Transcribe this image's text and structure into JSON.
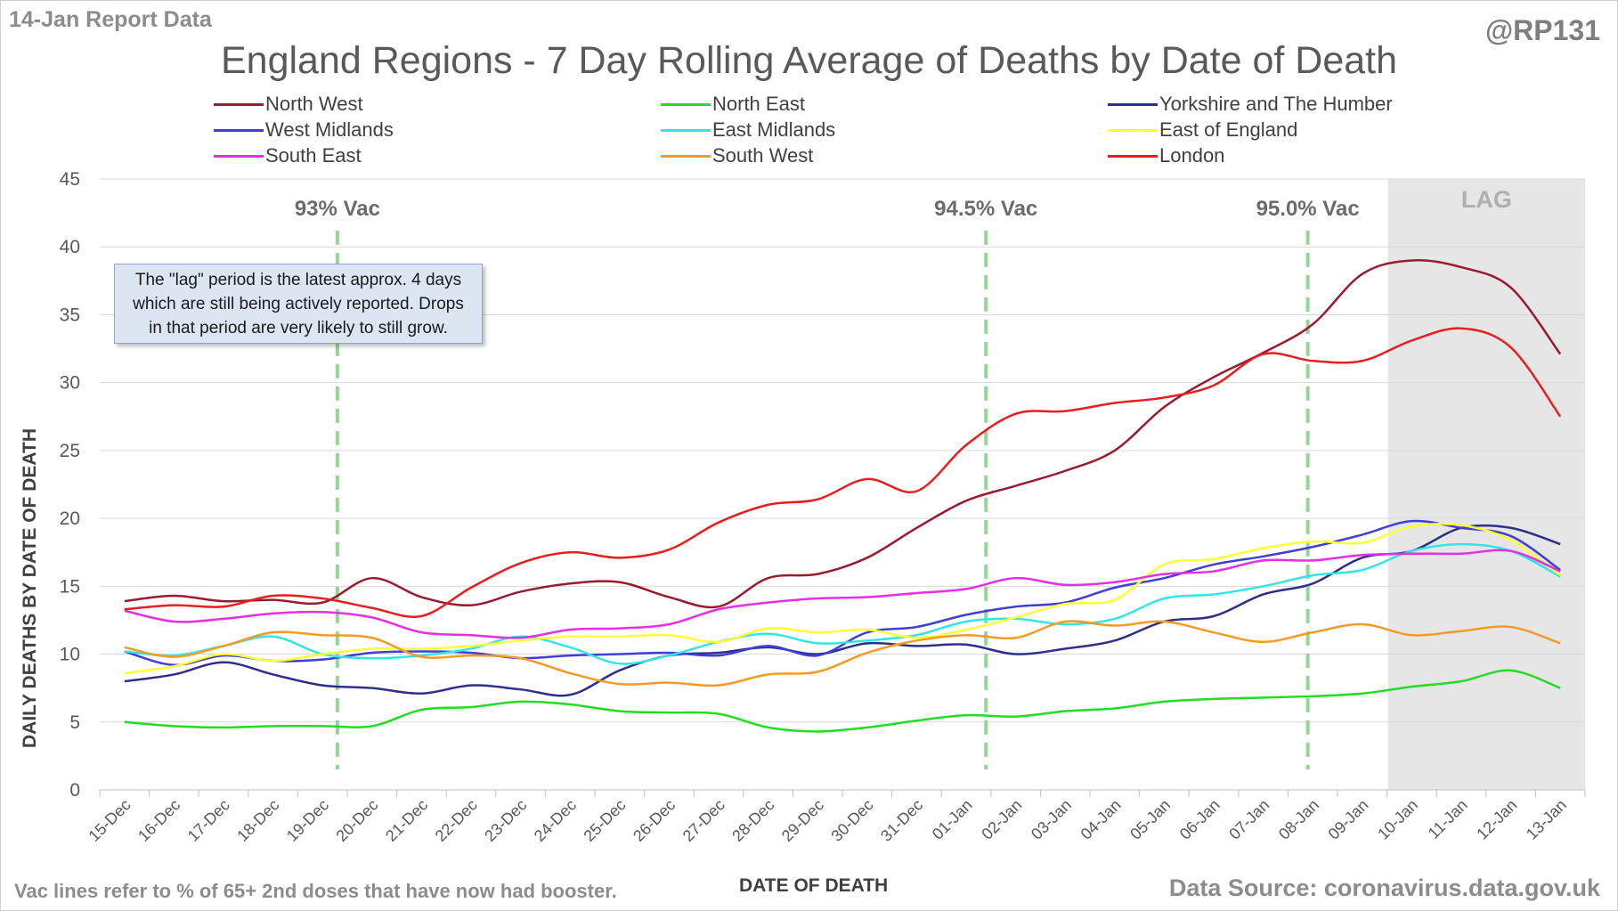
{
  "header": {
    "report_date": "14-Jan Report Data",
    "handle": "@RP131"
  },
  "footer": {
    "note": "Vac lines refer to % of 65+ 2nd doses that have now had booster.",
    "source": "Data Source: coronavirus.data.gov.uk"
  },
  "annotation": {
    "lines": [
      "The \"lag\" period is the latest approx. 4 days",
      "which are still being actively reported.  Drops",
      "in that period are very likely to still grow."
    ]
  },
  "chart_data": {
    "type": "line",
    "title": "England Regions - 7 Day Rolling Average of Deaths by Date of Death",
    "xlabel": "DATE OF DEATH",
    "ylabel": "DAILY DEATHS BY DATE OF DEATH",
    "ylim": [
      0,
      45
    ],
    "yticks": [
      0,
      5,
      10,
      15,
      20,
      25,
      30,
      35,
      40,
      45
    ],
    "grid": true,
    "legend_position": "top",
    "categories": [
      "15-Dec",
      "16-Dec",
      "17-Dec",
      "18-Dec",
      "19-Dec",
      "20-Dec",
      "21-Dec",
      "22-Dec",
      "23-Dec",
      "24-Dec",
      "25-Dec",
      "26-Dec",
      "27-Dec",
      "28-Dec",
      "29-Dec",
      "30-Dec",
      "31-Dec",
      "01-Jan",
      "02-Jan",
      "03-Jan",
      "04-Jan",
      "05-Jan",
      "06-Jan",
      "07-Jan",
      "08-Jan",
      "09-Jan",
      "10-Jan",
      "11-Jan",
      "12-Jan",
      "13-Jan"
    ],
    "lag_region": {
      "label": "LAG",
      "from": "10-Jan",
      "to": "13-Jan",
      "color": "#e6e6e6"
    },
    "vac_lines": [
      {
        "label": "93% Vac",
        "x_index": 4.3,
        "color": "#92d792"
      },
      {
        "label": "94.5% Vac",
        "x_index": 17.4,
        "color": "#92d792"
      },
      {
        "label": "95.0% Vac",
        "x_index": 23.9,
        "color": "#92d792"
      }
    ],
    "series": [
      {
        "name": "North West",
        "color": "#9b1b2e",
        "values": [
          13.9,
          14.3,
          13.9,
          14.0,
          13.8,
          15.6,
          14.2,
          13.6,
          14.6,
          15.2,
          15.3,
          14.2,
          13.5,
          15.6,
          15.9,
          17.1,
          19.3,
          21.3,
          22.4,
          23.5,
          25.0,
          28.2,
          30.4,
          32.2,
          34.3,
          38.0,
          39.0,
          38.5,
          37.0,
          32.1
        ]
      },
      {
        "name": "North East",
        "color": "#22dd22",
        "values": [
          5.0,
          4.7,
          4.6,
          4.7,
          4.7,
          4.7,
          5.9,
          6.1,
          6.5,
          6.3,
          5.8,
          5.7,
          5.6,
          4.6,
          4.3,
          4.6,
          5.1,
          5.5,
          5.4,
          5.8,
          6.0,
          6.5,
          6.7,
          6.8,
          6.9,
          7.1,
          7.6,
          8.0,
          8.8,
          7.5
        ]
      },
      {
        "name": "Yorkshire and The Humber",
        "color": "#2e2f8c",
        "values": [
          8.0,
          8.5,
          9.4,
          8.5,
          7.7,
          7.5,
          7.1,
          7.7,
          7.4,
          7.0,
          8.8,
          9.9,
          10.1,
          10.5,
          10.0,
          10.8,
          10.6,
          10.7,
          10.0,
          10.4,
          11.0,
          12.4,
          12.8,
          14.4,
          15.2,
          17.1,
          17.6,
          19.3,
          19.3,
          18.1
        ]
      },
      {
        "name": "West Midlands",
        "color": "#3f3fd6",
        "values": [
          10.2,
          9.2,
          9.9,
          9.5,
          9.6,
          10.1,
          10.2,
          10.1,
          9.7,
          9.9,
          10.0,
          10.1,
          9.9,
          10.6,
          9.9,
          11.6,
          12.0,
          12.9,
          13.5,
          13.8,
          14.9,
          15.6,
          16.6,
          17.2,
          17.9,
          18.8,
          19.8,
          19.3,
          18.7,
          16.2
        ]
      },
      {
        "name": "East Midlands",
        "color": "#33e6e6",
        "values": [
          10.2,
          9.9,
          10.6,
          11.3,
          10.0,
          9.7,
          9.9,
          10.4,
          11.3,
          10.5,
          9.3,
          9.9,
          10.9,
          11.5,
          10.8,
          11.0,
          11.4,
          12.4,
          12.6,
          12.2,
          12.6,
          14.1,
          14.4,
          15.0,
          15.8,
          16.2,
          17.6,
          18.1,
          17.6,
          15.7
        ]
      },
      {
        "name": "East of England",
        "color": "#ffff33",
        "values": [
          8.6,
          9.1,
          10.0,
          9.5,
          10.0,
          10.4,
          10.4,
          10.6,
          11.0,
          11.3,
          11.3,
          11.4,
          10.9,
          11.9,
          11.6,
          11.8,
          11.2,
          11.8,
          12.7,
          13.7,
          14.0,
          16.6,
          17.0,
          17.8,
          18.3,
          18.2,
          19.4,
          19.5,
          18.4,
          15.8
        ]
      },
      {
        "name": "South East",
        "color": "#e62ee6",
        "values": [
          13.2,
          12.4,
          12.6,
          13.0,
          13.1,
          12.7,
          11.6,
          11.4,
          11.2,
          11.8,
          11.9,
          12.2,
          13.3,
          13.8,
          14.1,
          14.2,
          14.5,
          14.8,
          15.6,
          15.1,
          15.3,
          15.9,
          16.1,
          16.9,
          16.9,
          17.3,
          17.4,
          17.4,
          17.6,
          16.1
        ]
      },
      {
        "name": "South West",
        "color": "#f59a23",
        "values": [
          10.5,
          9.8,
          10.6,
          11.6,
          11.4,
          11.2,
          9.8,
          9.9,
          9.7,
          8.6,
          7.8,
          7.9,
          7.7,
          8.5,
          8.7,
          10.1,
          11.0,
          11.4,
          11.2,
          12.4,
          12.1,
          12.4,
          11.6,
          10.9,
          11.6,
          12.2,
          11.4,
          11.7,
          12.0,
          10.8
        ]
      },
      {
        "name": "London",
        "color": "#e61e1e",
        "values": [
          13.3,
          13.6,
          13.5,
          14.3,
          14.1,
          13.4,
          12.8,
          14.9,
          16.7,
          17.5,
          17.1,
          17.7,
          19.7,
          21.0,
          21.4,
          22.9,
          22.0,
          25.4,
          27.7,
          27.9,
          28.5,
          28.9,
          29.8,
          32.1,
          31.6,
          31.6,
          33.1,
          34.0,
          32.6,
          27.5
        ]
      }
    ]
  }
}
